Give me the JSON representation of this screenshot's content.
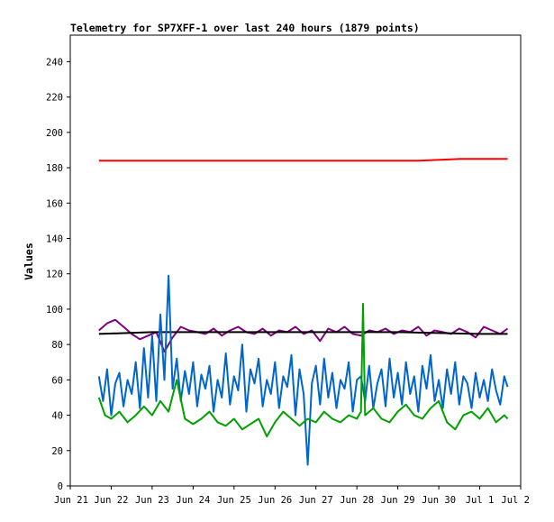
{
  "chart_data": {
    "type": "line",
    "title": "Telemetry for SP7XFF-1 over last 240 hours (1879 points)",
    "xlabel": "",
    "ylabel": "Values",
    "ylim": [
      0,
      255
    ],
    "yticks": [
      0,
      20,
      40,
      60,
      80,
      100,
      120,
      140,
      160,
      180,
      200,
      220,
      240
    ],
    "x_tick_labels": [
      "Jun 21",
      "Jun 22",
      "Jun 23",
      "Jun 24",
      "Jun 25",
      "Jun 26",
      "Jun 27",
      "Jun 28",
      "Jun 29",
      "Jun 30",
      "Jul 1",
      "Jul 2"
    ],
    "x_range_days": [
      0,
      11
    ],
    "grid": false,
    "legend": "none",
    "series": [
      {
        "color": "#ff0000",
        "x": [
          0.7,
          1.5,
          2.5,
          3.5,
          4.5,
          5.5,
          6.5,
          7.5,
          8.5,
          9.5,
          10.5,
          10.68
        ],
        "values": [
          184,
          184,
          184,
          184,
          184,
          184,
          184,
          184,
          184,
          185,
          185,
          185
        ]
      },
      {
        "color": "#800080",
        "x": [
          0.7,
          0.9,
          1.1,
          1.3,
          1.5,
          1.7,
          1.9,
          2.1,
          2.3,
          2.5,
          2.7,
          2.9,
          3.1,
          3.3,
          3.5,
          3.7,
          3.9,
          4.1,
          4.3,
          4.5,
          4.7,
          4.9,
          5.1,
          5.3,
          5.5,
          5.7,
          5.9,
          6.1,
          6.3,
          6.5,
          6.7,
          6.9,
          7.1,
          7.3,
          7.5,
          7.7,
          7.9,
          8.1,
          8.3,
          8.5,
          8.7,
          8.9,
          9.1,
          9.3,
          9.5,
          9.7,
          9.9,
          10.1,
          10.3,
          10.5,
          10.68
        ],
        "values": [
          88,
          92,
          94,
          90,
          86,
          83,
          85,
          87,
          76,
          84,
          90,
          88,
          87,
          86,
          89,
          85,
          88,
          90,
          87,
          86,
          89,
          85,
          88,
          87,
          90,
          86,
          88,
          82,
          89,
          87,
          90,
          86,
          85,
          88,
          87,
          89,
          86,
          88,
          87,
          90,
          85,
          88,
          87,
          86,
          89,
          87,
          84,
          90,
          88,
          86,
          89
        ]
      },
      {
        "color": "#000000",
        "x": [
          0.7,
          2.0,
          4.0,
          6.0,
          8.0,
          10.0,
          10.68
        ],
        "values": [
          86,
          87,
          87,
          87,
          87,
          86,
          86
        ]
      },
      {
        "color": "#0066cc",
        "x": [
          0.7,
          0.8,
          0.9,
          1.0,
          1.1,
          1.2,
          1.3,
          1.4,
          1.5,
          1.6,
          1.7,
          1.8,
          1.9,
          2.0,
          2.1,
          2.2,
          2.3,
          2.4,
          2.5,
          2.6,
          2.7,
          2.8,
          2.9,
          3.0,
          3.1,
          3.2,
          3.3,
          3.4,
          3.5,
          3.6,
          3.7,
          3.8,
          3.9,
          4.0,
          4.1,
          4.2,
          4.3,
          4.4,
          4.5,
          4.6,
          4.7,
          4.8,
          4.9,
          5.0,
          5.1,
          5.2,
          5.3,
          5.4,
          5.5,
          5.6,
          5.7,
          5.8,
          5.9,
          6.0,
          6.1,
          6.2,
          6.3,
          6.4,
          6.5,
          6.6,
          6.7,
          6.8,
          6.9,
          7.0,
          7.1,
          7.2,
          7.3,
          7.4,
          7.5,
          7.6,
          7.7,
          7.8,
          7.9,
          8.0,
          8.1,
          8.2,
          8.3,
          8.4,
          8.5,
          8.6,
          8.7,
          8.8,
          8.9,
          9.0,
          9.1,
          9.2,
          9.3,
          9.4,
          9.5,
          9.6,
          9.7,
          9.8,
          9.9,
          10.0,
          10.1,
          10.2,
          10.3,
          10.4,
          10.5,
          10.6,
          10.68
        ],
        "values": [
          62,
          48,
          66,
          40,
          58,
          64,
          45,
          60,
          52,
          70,
          44,
          78,
          50,
          85,
          48,
          97,
          60,
          119,
          55,
          72,
          48,
          65,
          52,
          70,
          45,
          63,
          55,
          68,
          42,
          60,
          50,
          75,
          46,
          62,
          54,
          80,
          42,
          66,
          58,
          72,
          45,
          60,
          52,
          70,
          44,
          62,
          56,
          74,
          40,
          66,
          52,
          12,
          58,
          68,
          46,
          72,
          50,
          64,
          44,
          60,
          55,
          70,
          42,
          60,
          62,
          48,
          68,
          44,
          58,
          66,
          45,
          72,
          50,
          64,
          46,
          70,
          52,
          62,
          42,
          68,
          55,
          74,
          48,
          60,
          44,
          66,
          52,
          70,
          46,
          62,
          58,
          44,
          64,
          50,
          60,
          48,
          66,
          54,
          46,
          62,
          56
        ]
      },
      {
        "color": "#00a000",
        "x": [
          0.7,
          0.85,
          1.0,
          1.2,
          1.4,
          1.6,
          1.8,
          2.0,
          2.2,
          2.4,
          2.6,
          2.8,
          3.0,
          3.2,
          3.4,
          3.6,
          3.8,
          4.0,
          4.2,
          4.4,
          4.6,
          4.8,
          5.0,
          5.2,
          5.4,
          5.6,
          5.8,
          6.0,
          6.2,
          6.4,
          6.6,
          6.8,
          7.0,
          7.1,
          7.15,
          7.2,
          7.4,
          7.6,
          7.8,
          8.0,
          8.2,
          8.4,
          8.6,
          8.8,
          9.0,
          9.2,
          9.4,
          9.6,
          9.8,
          10.0,
          10.2,
          10.4,
          10.6,
          10.68
        ],
        "values": [
          50,
          40,
          38,
          42,
          36,
          40,
          45,
          40,
          48,
          42,
          60,
          38,
          35,
          38,
          42,
          36,
          34,
          38,
          32,
          35,
          38,
          28,
          36,
          42,
          38,
          34,
          38,
          36,
          42,
          38,
          36,
          40,
          38,
          42,
          103,
          40,
          44,
          38,
          36,
          42,
          46,
          40,
          38,
          44,
          48,
          36,
          32,
          40,
          42,
          38,
          44,
          36,
          40,
          38
        ]
      }
    ]
  }
}
